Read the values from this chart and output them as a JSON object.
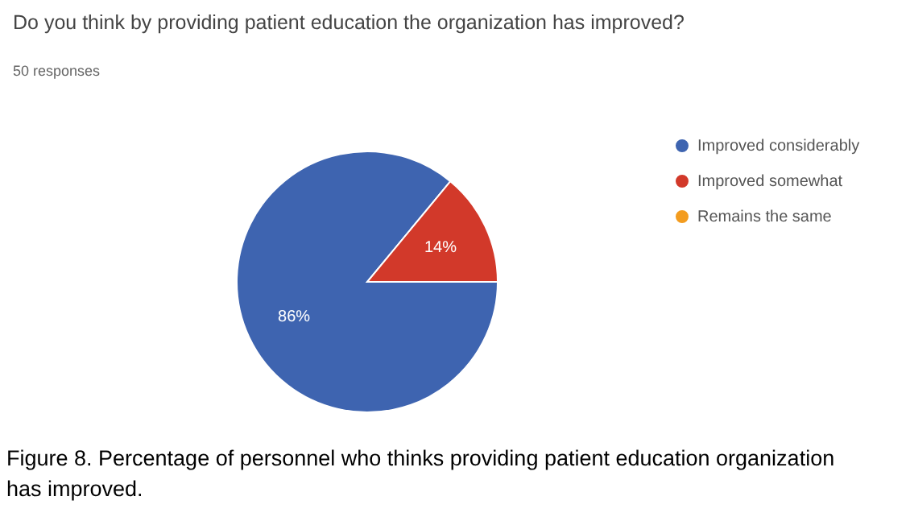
{
  "chart_data": {
    "type": "pie",
    "title": "Do you think by providing patient education the organization has improved?",
    "subtitle": "50 responses",
    "categories": [
      "Improved considerably",
      "Improved somewhat",
      "Remains the same"
    ],
    "values": [
      86,
      14,
      0
    ],
    "colors": [
      "#3e64b0",
      "#d2392a",
      "#f39c1f"
    ],
    "value_labels": [
      "86%",
      "14%",
      null
    ],
    "legend": "right",
    "annotations": [
      "Figure 8. Percentage of personnel who thinks providing patient education organization has improved."
    ]
  }
}
